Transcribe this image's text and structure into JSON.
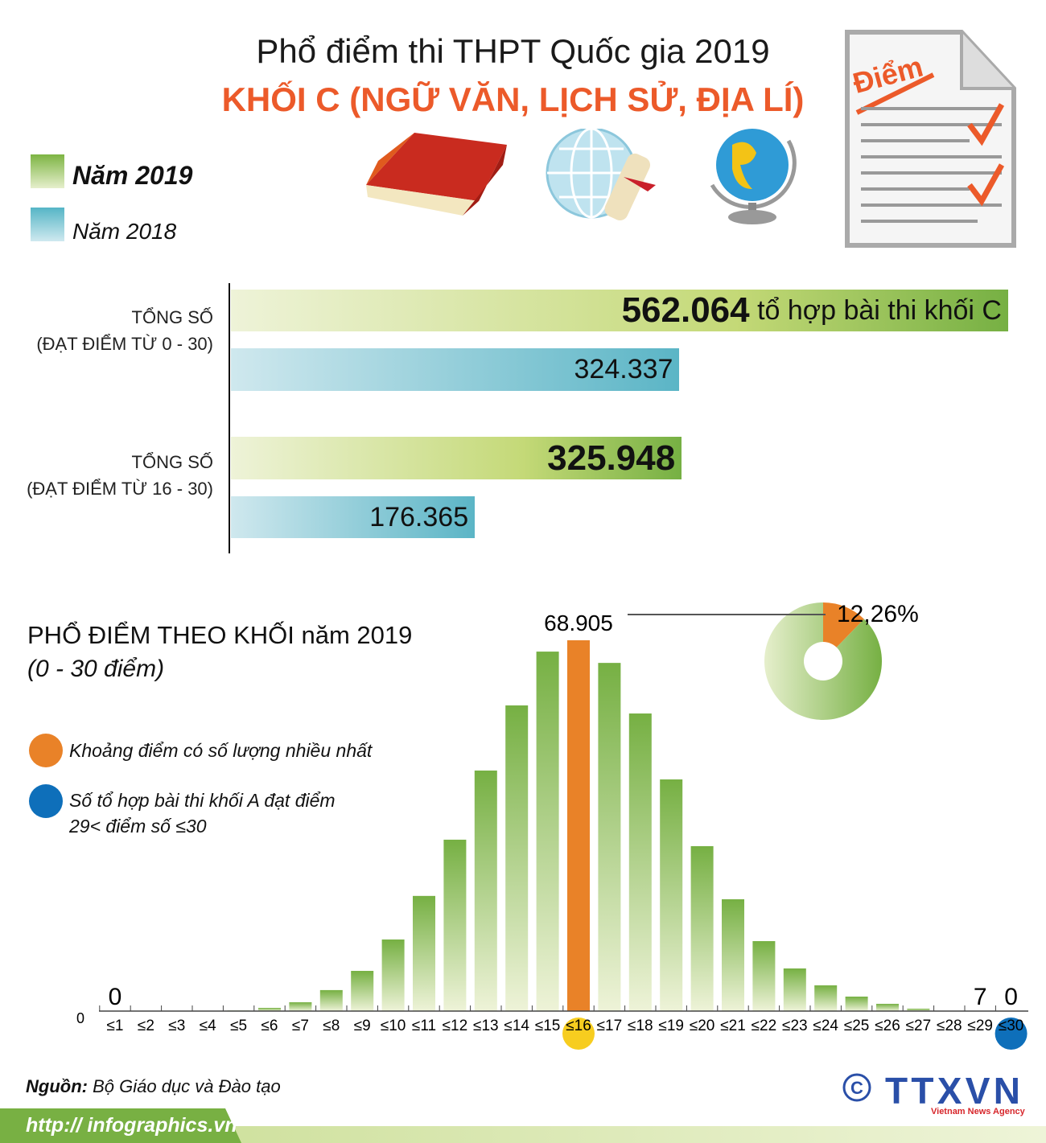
{
  "header": {
    "title": "Phổ điểm thi THPT Quốc gia 2019",
    "subtitle": "KHỐI C (NGỮ VĂN, LỊCH SỬ, ĐỊA LÍ)",
    "doc_icon_text": "Điểm"
  },
  "legend": [
    {
      "label": "Năm 2019",
      "color": "#7db443"
    },
    {
      "label": "Năm 2018",
      "color": "#55b5c6"
    }
  ],
  "chart_data": [
    {
      "type": "bar",
      "orientation": "horizontal",
      "groups": [
        {
          "label_line1": "TỔNG SỐ",
          "label_line2": "(ĐẠT ĐIỂM TỪ 0 - 30)",
          "v2019": 562064,
          "v2019_label": "562.064",
          "v2019_suffix": "tổ hợp bài thi khối C",
          "v2018": 324337,
          "v2018_label": "324.337"
        },
        {
          "label_line1": "TỔNG SỐ",
          "label_line2": "(ĐẠT ĐIỂM TỪ 16 - 30)",
          "v2019": 325948,
          "v2019_label": "325.948",
          "v2018": 176365,
          "v2018_label": "176.365"
        }
      ]
    },
    {
      "type": "bar",
      "title": "PHỔ ĐIỂM THEO KHỐI năm 2019",
      "subtitle": "(0 - 30 điểm)",
      "categories": [
        "≤1",
        "≤2",
        "≤3",
        "≤4",
        "≤5",
        "≤6",
        "≤7",
        "≤8",
        "≤9",
        "≤10",
        "≤11",
        "≤12",
        "≤13",
        "≤14",
        "≤15",
        "≤16",
        "≤17",
        "≤18",
        "≤19",
        "≤20",
        "≤21",
        "≤22",
        "≤23",
        "≤24",
        "≤25",
        "≤26",
        "≤27",
        "≤28",
        "≤29",
        "≤30"
      ],
      "values": [
        0,
        0,
        0,
        0,
        100,
        600,
        1640,
        3900,
        7470,
        13300,
        21400,
        31850,
        44700,
        56800,
        66800,
        68905,
        64700,
        55300,
        43050,
        30650,
        20780,
        13000,
        7920,
        4780,
        2690,
        1350,
        450,
        50,
        7,
        0
      ],
      "highlight_index": 15,
      "data_labels": [
        {
          "index": 0,
          "text": "0"
        },
        {
          "index": 15,
          "text": "68.905"
        },
        {
          "index": 28,
          "text": "7"
        },
        {
          "index": 29,
          "text": "0"
        }
      ],
      "y_zero_label": "0",
      "colors": {
        "bar": "#7db443",
        "highlight": "#e98228",
        "max_marker": "#f7cd1f",
        "top_marker": "#0e6fba"
      }
    },
    {
      "type": "pie",
      "donut": true,
      "slices": [
        {
          "value": 12.26,
          "label": "12,26%",
          "color": "#e98228"
        },
        {
          "value": 87.74,
          "color": "#9cc45a"
        }
      ]
    }
  ],
  "chart_legend": [
    {
      "label": "Khoảng điểm có số lượng nhiều nhất",
      "color": "#e98228"
    },
    {
      "label": "Số tổ hợp bài thi khối A đạt điểm",
      "label2": "29< điểm số ≤30",
      "color": "#0e6fba"
    }
  ],
  "footer": {
    "source_label": "Nguồn:",
    "source": "Bộ Giáo dục và Đào tạo",
    "url": "http:// infographics.vn",
    "logo": "TTXVN",
    "logo_sub": "Vietnam News Agency",
    "copyright": "©"
  }
}
